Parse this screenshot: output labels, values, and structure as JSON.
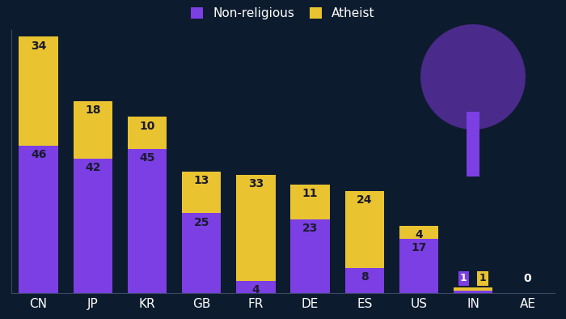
{
  "chart_data": {
    "type": "bar",
    "stacked": true,
    "data_labels": true,
    "tick_labels": "x",
    "legend": "upper center",
    "grid": false,
    "categories": [
      "CN",
      "JP",
      "KR",
      "GB",
      "FR",
      "DE",
      "ES",
      "US",
      "IN",
      "AE"
    ],
    "series": [
      {
        "name": "Non-religious",
        "color": "#7b3fe4",
        "values": [
          46,
          42,
          45,
          25,
          4,
          23,
          8,
          17,
          1,
          0
        ]
      },
      {
        "name": "Atheist",
        "color": "#e9c430",
        "values": [
          34,
          18,
          10,
          13,
          33,
          11,
          24,
          4,
          1,
          0
        ]
      }
    ],
    "ylim": [
      0,
      82
    ]
  }
}
